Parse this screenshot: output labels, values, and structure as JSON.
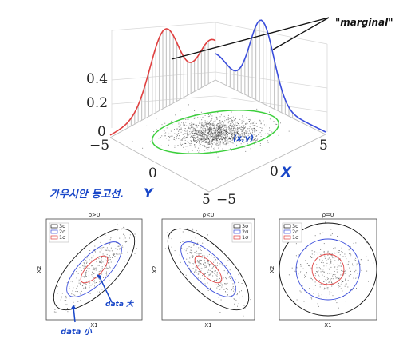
{
  "top_plot": {
    "z_ticks": [
      "0.4",
      "0.2",
      "0"
    ],
    "y_ticks": [
      "−5",
      "0",
      "5"
    ],
    "x_ticks": [
      "5",
      "0",
      "−5"
    ],
    "annotation_marginal": "\"marginal\"",
    "annotation_xy": "(x,y)",
    "annotation_x_axis": "X",
    "annotation_y_axis": "Y",
    "annotation_korean": "가우시안 등고선."
  },
  "colors": {
    "red": "#e04040",
    "blue": "#3a4ddc",
    "green": "#3ccf3c",
    "ink": "#1846c8",
    "sigma3": "#111111"
  },
  "panels": [
    {
      "title": "ρ>0",
      "xlabel": "X1",
      "ylabel": "X2",
      "legend": [
        "3σ",
        "2σ",
        "1σ"
      ]
    },
    {
      "title": "ρ<0",
      "xlabel": "X1",
      "ylabel": "X2",
      "legend": [
        "3σ",
        "2σ",
        "1σ"
      ]
    },
    {
      "title": "ρ=0",
      "xlabel": "X1",
      "ylabel": "X2",
      "legend": [
        "3σ",
        "2σ",
        "1σ"
      ]
    }
  ],
  "panel_annotations": {
    "data_big": "data 大",
    "data_small": "data 小"
  }
}
